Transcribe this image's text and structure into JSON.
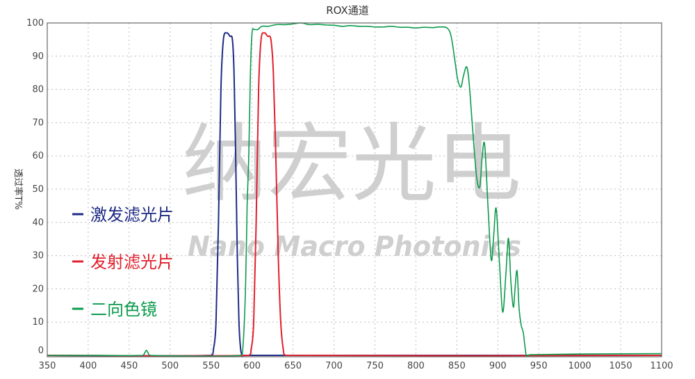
{
  "chart_data": {
    "type": "line",
    "title": "ROX通道",
    "xlabel": "",
    "ylabel": "透过率T%",
    "xlim": [
      350,
      1100
    ],
    "ylim": [
      0,
      100
    ],
    "xticks": [
      350,
      400,
      450,
      500,
      550,
      600,
      650,
      700,
      750,
      800,
      850,
      900,
      950,
      1000,
      1050,
      1100
    ],
    "yticks": [
      0,
      10,
      20,
      30,
      40,
      50,
      60,
      70,
      80,
      90,
      100
    ],
    "grid": true,
    "legend_position": "left",
    "series": [
      {
        "name": "激发滤光片",
        "color": "#1e2a84",
        "x": [
          350,
          550,
          553,
          556,
          559,
          562,
          565,
          569,
          573,
          576,
          578,
          580,
          582,
          584,
          586,
          588,
          590,
          1100
        ],
        "y": [
          0,
          0,
          2,
          10,
          40,
          80,
          95,
          97,
          96,
          95,
          85,
          60,
          30,
          10,
          2,
          0,
          0,
          0
        ]
      },
      {
        "name": "发射滤光片",
        "color": "#e0202c",
        "x": [
          350,
          596,
          599,
          602,
          605,
          608,
          611,
          615,
          619,
          623,
          626,
          629,
          632,
          635,
          638,
          641,
          1100
        ],
        "y": [
          0,
          0,
          2,
          10,
          40,
          80,
          95,
          97,
          96,
          95,
          85,
          60,
          30,
          10,
          2,
          0,
          0
        ]
      },
      {
        "name": "二向色镜",
        "color": "#0b9a4c",
        "x": [
          350,
          466,
          469,
          471,
          473,
          476,
          586,
          589,
          592,
          594,
          596,
          598,
          600,
          603,
          607,
          612,
          620,
          630,
          640,
          650,
          660,
          670,
          680,
          690,
          700,
          710,
          720,
          730,
          740,
          750,
          760,
          770,
          780,
          790,
          800,
          810,
          820,
          830,
          838,
          843,
          848,
          851,
          855,
          858,
          862,
          865,
          869,
          874,
          878,
          881,
          884,
          888,
          892,
          895,
          898,
          902,
          906,
          910,
          913,
          916,
          919,
          921,
          923.5,
          926,
          928.6,
          931,
          933,
          935,
          940,
          1000,
          1100
        ],
        "y": [
          0,
          0,
          0.8,
          1.5,
          0.8,
          0,
          0,
          3,
          20,
          45,
          60,
          85,
          97,
          98,
          98,
          99,
          99,
          99.5,
          99.5,
          99.7,
          100,
          99.5,
          99.6,
          99.4,
          99.3,
          99,
          99.2,
          99,
          99,
          98.8,
          98.8,
          99,
          98.7,
          98.7,
          98.5,
          98.7,
          98.6,
          98.8,
          98.5,
          96,
          88,
          83,
          80.7,
          84,
          86.8,
          82,
          69,
          54,
          50.7,
          60,
          63.3,
          45,
          28.7,
          36,
          44.2,
          28,
          13,
          25,
          35.2,
          22,
          14.5,
          20,
          25.4,
          14,
          9,
          7,
          3,
          0,
          0.2,
          0.4,
          0.5
        ]
      }
    ]
  },
  "watermark": {
    "chinese": "纳宏光电",
    "english": "Nano Macro Photonics"
  }
}
